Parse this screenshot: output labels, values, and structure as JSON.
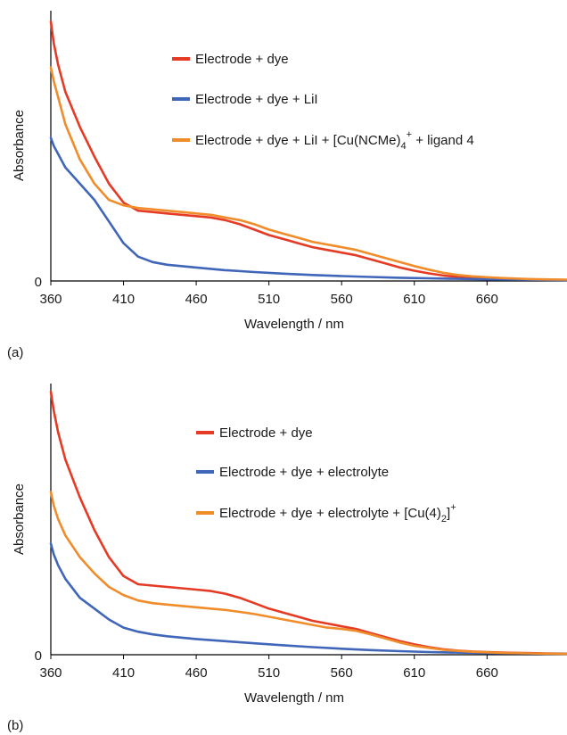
{
  "chart_data": [
    {
      "type": "line",
      "panel_label": "(a)",
      "xlabel": "Wavelength / nm",
      "ylabel": "Absorbance",
      "x_ticks": [
        360,
        410,
        460,
        510,
        560,
        610,
        660
      ],
      "y_ticks": [
        0
      ],
      "xlim": [
        360,
        715
      ],
      "ylim": [
        0,
        1.0
      ],
      "grid": false,
      "legend_position": "top-right",
      "series": [
        {
          "name": "Electrode + dye",
          "color": "#e53a24",
          "x": [
            360,
            362,
            365,
            370,
            380,
            390,
            400,
            410,
            420,
            430,
            440,
            450,
            460,
            470,
            480,
            490,
            500,
            510,
            520,
            530,
            540,
            550,
            560,
            570,
            580,
            590,
            600,
            610,
            620,
            630,
            640,
            650,
            660,
            670,
            680,
            690,
            700,
            715
          ],
          "y": [
            0.96,
            0.88,
            0.8,
            0.7,
            0.57,
            0.46,
            0.36,
            0.29,
            0.26,
            0.255,
            0.25,
            0.245,
            0.24,
            0.235,
            0.225,
            0.21,
            0.19,
            0.17,
            0.155,
            0.14,
            0.125,
            0.115,
            0.105,
            0.095,
            0.08,
            0.065,
            0.05,
            0.038,
            0.028,
            0.02,
            0.015,
            0.012,
            0.01,
            0.008,
            0.007,
            0.006,
            0.005,
            0.004
          ]
        },
        {
          "name": "Electrode + dye + LiI",
          "color": "#4066b9",
          "x": [
            360,
            362,
            365,
            370,
            380,
            390,
            400,
            410,
            420,
            430,
            440,
            460,
            480,
            500,
            520,
            540,
            560,
            580,
            600,
            620,
            640,
            660,
            680,
            700,
            715
          ],
          "y": [
            0.53,
            0.5,
            0.47,
            0.42,
            0.36,
            0.3,
            0.22,
            0.14,
            0.09,
            0.07,
            0.06,
            0.05,
            0.04,
            0.033,
            0.027,
            0.022,
            0.018,
            0.015,
            0.012,
            0.01,
            0.008,
            0.006,
            0.005,
            0.004,
            0.003
          ]
        },
        {
          "name": "Electrode + dye + LiI + [Cu(NCMe)4]+ + ligand 4",
          "color": "#f08c2a",
          "x": [
            360,
            362,
            365,
            370,
            380,
            390,
            400,
            410,
            420,
            430,
            440,
            450,
            460,
            470,
            480,
            490,
            500,
            510,
            520,
            530,
            540,
            550,
            560,
            570,
            580,
            590,
            600,
            610,
            620,
            630,
            640,
            650,
            660,
            670,
            680,
            690,
            700,
            715
          ],
          "y": [
            0.79,
            0.74,
            0.68,
            0.58,
            0.45,
            0.36,
            0.3,
            0.28,
            0.27,
            0.265,
            0.26,
            0.255,
            0.25,
            0.245,
            0.235,
            0.225,
            0.21,
            0.19,
            0.175,
            0.16,
            0.145,
            0.135,
            0.125,
            0.115,
            0.1,
            0.085,
            0.07,
            0.055,
            0.042,
            0.03,
            0.022,
            0.017,
            0.014,
            0.011,
            0.009,
            0.007,
            0.006,
            0.005
          ]
        }
      ]
    },
    {
      "type": "line",
      "panel_label": "(b)",
      "xlabel": "Wavelength / nm",
      "ylabel": "Absorbance",
      "x_ticks": [
        360,
        410,
        460,
        510,
        560,
        610,
        660
      ],
      "y_ticks": [
        0
      ],
      "xlim": [
        360,
        715
      ],
      "ylim": [
        0,
        1.0
      ],
      "grid": false,
      "legend_position": "top-right",
      "series": [
        {
          "name": "Electrode + dye",
          "color": "#e53a24",
          "x": [
            360,
            362,
            365,
            370,
            380,
            390,
            400,
            410,
            420,
            430,
            440,
            450,
            460,
            470,
            480,
            490,
            500,
            510,
            520,
            530,
            540,
            550,
            560,
            570,
            580,
            590,
            600,
            610,
            620,
            630,
            640,
            650,
            660,
            670,
            680,
            690,
            700,
            715
          ],
          "y": [
            0.97,
            0.9,
            0.82,
            0.72,
            0.58,
            0.46,
            0.36,
            0.29,
            0.26,
            0.255,
            0.25,
            0.245,
            0.24,
            0.235,
            0.225,
            0.21,
            0.19,
            0.17,
            0.155,
            0.14,
            0.125,
            0.115,
            0.105,
            0.095,
            0.08,
            0.065,
            0.05,
            0.038,
            0.028,
            0.02,
            0.015,
            0.012,
            0.01,
            0.008,
            0.007,
            0.006,
            0.005,
            0.004
          ]
        },
        {
          "name": "Electrode + dye + electrolyte",
          "color": "#4066b9",
          "x": [
            360,
            362,
            365,
            370,
            380,
            390,
            400,
            410,
            420,
            430,
            440,
            460,
            480,
            500,
            520,
            540,
            560,
            580,
            600,
            620,
            640,
            660,
            680,
            700,
            715
          ],
          "y": [
            0.41,
            0.37,
            0.33,
            0.28,
            0.21,
            0.17,
            0.13,
            0.1,
            0.085,
            0.075,
            0.068,
            0.058,
            0.05,
            0.042,
            0.035,
            0.028,
            0.022,
            0.017,
            0.013,
            0.01,
            0.008,
            0.006,
            0.005,
            0.004,
            0.003
          ]
        },
        {
          "name": "Electrode + dye + electrolyte + [Cu(4)2]+",
          "color": "#f08c2a",
          "x": [
            360,
            362,
            365,
            370,
            380,
            390,
            400,
            410,
            420,
            430,
            440,
            450,
            460,
            470,
            480,
            490,
            500,
            510,
            520,
            530,
            540,
            550,
            560,
            570,
            580,
            590,
            600,
            610,
            620,
            630,
            640,
            650,
            660,
            670,
            680,
            690,
            700,
            715
          ],
          "y": [
            0.6,
            0.55,
            0.5,
            0.44,
            0.36,
            0.3,
            0.25,
            0.22,
            0.2,
            0.19,
            0.185,
            0.18,
            0.175,
            0.17,
            0.165,
            0.158,
            0.15,
            0.14,
            0.13,
            0.12,
            0.11,
            0.1,
            0.095,
            0.088,
            0.075,
            0.06,
            0.045,
            0.033,
            0.025,
            0.018,
            0.014,
            0.011,
            0.009,
            0.007,
            0.006,
            0.005,
            0.004,
            0.003
          ]
        }
      ]
    }
  ]
}
